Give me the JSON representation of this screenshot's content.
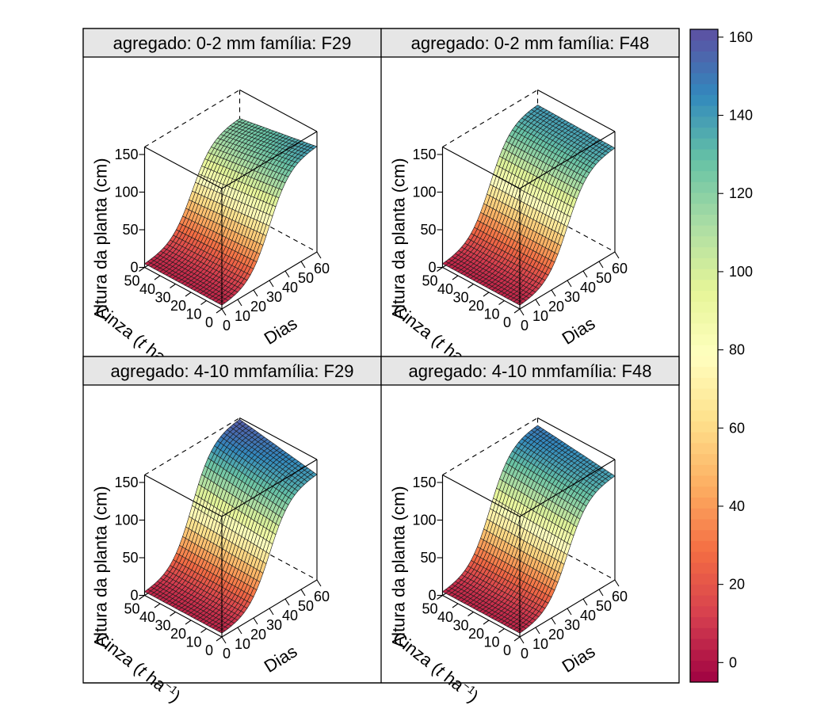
{
  "chart_data": {
    "type": "surface",
    "legend_placement": "right",
    "colorkey": {
      "range": [
        -5,
        162
      ],
      "ticks": [
        0,
        20,
        40,
        60,
        80,
        100,
        120,
        140,
        160
      ],
      "tick_labels": [
        "0",
        "20",
        "40",
        "60",
        "80",
        "100",
        "120",
        "140",
        "160"
      ],
      "palette": [
        "#9e0142",
        "#d53e4f",
        "#f46d43",
        "#fdae61",
        "#fee08b",
        "#ffffbf",
        "#e6f598",
        "#abdda4",
        "#66c2a5",
        "#3288bd",
        "#5e4fa2"
      ]
    },
    "axes": {
      "x": {
        "label": "Dias",
        "ticks": [
          "0",
          "10",
          "20",
          "30",
          "40",
          "50",
          "60"
        ],
        "range": [
          0,
          60
        ]
      },
      "y": {
        "label_main": "Cinza (",
        "label_t": "t",
        "label_ha": " ha",
        "label_sup": "−1",
        "label_close": ")",
        "ticks": [
          "0",
          "10",
          "20",
          "30",
          "40",
          "50"
        ],
        "range": [
          0,
          50
        ]
      },
      "z": {
        "label": "Altura da planta (cm)",
        "ticks": [
          "0",
          "50",
          "100",
          "150"
        ],
        "range": [
          0,
          160
        ]
      }
    },
    "panels": [
      {
        "strip": "agregado: 0-2 mm  família: F29",
        "z_at_day60_cinza0": 140,
        "z_at_day60_cinza50": 122,
        "z_at_day0": 5
      },
      {
        "strip": "agregado: 0-2 mm  família: F48",
        "z_at_day60_cinza0": 138,
        "z_at_day60_cinza50": 140,
        "z_at_day0": 5
      },
      {
        "strip": "agregado: 4-10 mmfamília: F29",
        "z_at_day60_cinza0": 140,
        "z_at_day60_cinza50": 158,
        "z_at_day0": 5
      },
      {
        "strip": "agregado: 4-10 mmfamília: F48",
        "z_at_day60_cinza0": 138,
        "z_at_day60_cinza50": 150,
        "z_at_day0": 5
      }
    ]
  }
}
